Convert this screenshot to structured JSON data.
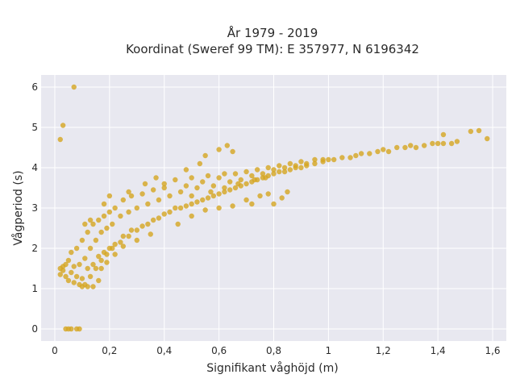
{
  "chart_data": {
    "type": "scatter",
    "title": "År 1979 - 2019",
    "subtitle": "Koordinat (Sweref 99 TM): E 357977, N 6196342",
    "xlabel": "Signifikant våghöjd (m)",
    "ylabel": "Vågperiod (s)",
    "xlim": [
      -0.05,
      1.65
    ],
    "ylim": [
      -0.3,
      6.3
    ],
    "x_ticks": [
      0,
      0.2,
      0.4,
      0.6,
      0.8,
      1,
      1.2,
      1.4,
      1.6
    ],
    "x_tick_labels": [
      "0",
      "0,2",
      "0,4",
      "0,6",
      "0,8",
      "1",
      "1,2",
      "1,4",
      "1,6"
    ],
    "y_ticks": [
      0,
      1,
      2,
      3,
      4,
      5,
      6
    ],
    "y_tick_labels": [
      "0",
      "1",
      "2",
      "3",
      "4",
      "5",
      "6"
    ],
    "grid": true,
    "legend": "none",
    "colors": {
      "point": "#d4a520",
      "plot_bg": "#e8e8f0",
      "grid": "#ffffff"
    },
    "series": [
      {
        "values_note": "",
        "points": [
          [
            0.02,
            1.35
          ],
          [
            0.02,
            1.5
          ],
          [
            0.03,
            1.45
          ],
          [
            0.03,
            1.55
          ],
          [
            0.04,
            1.3
          ],
          [
            0.04,
            1.6
          ],
          [
            0.05,
            1.2
          ],
          [
            0.05,
            1.7
          ],
          [
            0.06,
            1.4
          ],
          [
            0.06,
            1.9
          ],
          [
            0.07,
            1.15
          ],
          [
            0.07,
            1.55
          ],
          [
            0.08,
            1.3
          ],
          [
            0.08,
            2.0
          ],
          [
            0.09,
            1.1
          ],
          [
            0.09,
            1.6
          ],
          [
            0.1,
            1.25
          ],
          [
            0.1,
            2.2
          ],
          [
            0.11,
            1.1
          ],
          [
            0.11,
            1.75
          ],
          [
            0.12,
            1.5
          ],
          [
            0.12,
            2.4
          ],
          [
            0.13,
            1.3
          ],
          [
            0.13,
            2.0
          ],
          [
            0.14,
            1.6
          ],
          [
            0.14,
            2.6
          ],
          [
            0.15,
            1.5
          ],
          [
            0.15,
            2.2
          ],
          [
            0.16,
            1.8
          ],
          [
            0.16,
            2.7
          ],
          [
            0.17,
            1.7
          ],
          [
            0.17,
            2.4
          ],
          [
            0.18,
            1.9
          ],
          [
            0.18,
            2.8
          ],
          [
            0.19,
            1.85
          ],
          [
            0.19,
            2.5
          ],
          [
            0.2,
            2.0
          ],
          [
            0.2,
            2.9
          ],
          [
            0.21,
            2.0
          ],
          [
            0.21,
            2.6
          ],
          [
            0.22,
            2.1
          ],
          [
            0.22,
            3.0
          ],
          [
            0.24,
            2.15
          ],
          [
            0.24,
            2.8
          ],
          [
            0.25,
            2.3
          ],
          [
            0.25,
            3.2
          ],
          [
            0.27,
            2.3
          ],
          [
            0.27,
            2.9
          ],
          [
            0.28,
            2.45
          ],
          [
            0.28,
            3.3
          ],
          [
            0.3,
            2.45
          ],
          [
            0.3,
            3.0
          ],
          [
            0.32,
            2.55
          ],
          [
            0.32,
            3.35
          ],
          [
            0.34,
            2.6
          ],
          [
            0.34,
            3.1
          ],
          [
            0.36,
            2.7
          ],
          [
            0.36,
            3.45
          ],
          [
            0.38,
            2.75
          ],
          [
            0.38,
            3.2
          ],
          [
            0.4,
            2.85
          ],
          [
            0.4,
            3.6
          ],
          [
            0.42,
            2.9
          ],
          [
            0.42,
            3.3
          ],
          [
            0.44,
            3.0
          ],
          [
            0.44,
            3.7
          ],
          [
            0.46,
            3.0
          ],
          [
            0.46,
            3.4
          ],
          [
            0.48,
            3.05
          ],
          [
            0.48,
            3.55
          ],
          [
            0.5,
            3.1
          ],
          [
            0.5,
            3.75
          ],
          [
            0.52,
            3.15
          ],
          [
            0.52,
            3.5
          ],
          [
            0.54,
            3.2
          ],
          [
            0.54,
            3.65
          ],
          [
            0.56,
            3.25
          ],
          [
            0.56,
            3.8
          ],
          [
            0.58,
            3.3
          ],
          [
            0.58,
            3.55
          ],
          [
            0.6,
            3.35
          ],
          [
            0.6,
            3.75
          ],
          [
            0.62,
            3.4
          ],
          [
            0.62,
            3.85
          ],
          [
            0.64,
            3.45
          ],
          [
            0.64,
            3.65
          ],
          [
            0.66,
            3.5
          ],
          [
            0.66,
            3.85
          ],
          [
            0.68,
            3.55
          ],
          [
            0.68,
            3.7
          ],
          [
            0.7,
            3.6
          ],
          [
            0.7,
            3.9
          ],
          [
            0.72,
            3.65
          ],
          [
            0.72,
            3.8
          ],
          [
            0.74,
            3.7
          ],
          [
            0.74,
            3.95
          ],
          [
            0.76,
            3.75
          ],
          [
            0.76,
            3.85
          ],
          [
            0.78,
            3.8
          ],
          [
            0.78,
            4.0
          ],
          [
            0.8,
            3.85
          ],
          [
            0.8,
            3.95
          ],
          [
            0.82,
            3.9
          ],
          [
            0.82,
            4.05
          ],
          [
            0.84,
            3.9
          ],
          [
            0.84,
            4.0
          ],
          [
            0.86,
            3.95
          ],
          [
            0.86,
            4.1
          ],
          [
            0.88,
            4.0
          ],
          [
            0.88,
            4.05
          ],
          [
            0.9,
            4.0
          ],
          [
            0.9,
            4.15
          ],
          [
            0.92,
            4.05
          ],
          [
            0.92,
            4.1
          ],
          [
            0.95,
            4.1
          ],
          [
            0.95,
            4.2
          ],
          [
            0.98,
            4.15
          ],
          [
            0.98,
            4.2
          ],
          [
            1.0,
            4.2
          ],
          [
            1.02,
            4.2
          ],
          [
            1.05,
            4.25
          ],
          [
            1.08,
            4.25
          ],
          [
            1.1,
            4.3
          ],
          [
            1.12,
            4.35
          ],
          [
            1.15,
            4.35
          ],
          [
            1.18,
            4.4
          ],
          [
            1.2,
            4.45
          ],
          [
            1.22,
            4.4
          ],
          [
            1.25,
            4.5
          ],
          [
            1.28,
            4.5
          ],
          [
            1.3,
            4.55
          ],
          [
            1.32,
            4.5
          ],
          [
            1.35,
            4.55
          ],
          [
            1.38,
            4.6
          ],
          [
            1.4,
            4.6
          ],
          [
            1.42,
            4.6
          ],
          [
            1.45,
            4.6
          ],
          [
            1.47,
            4.65
          ],
          [
            1.42,
            4.82
          ],
          [
            1.52,
            4.9
          ],
          [
            1.55,
            4.92
          ],
          [
            1.58,
            4.72
          ],
          [
            0.02,
            4.7
          ],
          [
            0.03,
            5.05
          ],
          [
            0.07,
            6.0
          ],
          [
            0.04,
            0.0
          ],
          [
            0.05,
            0.0
          ],
          [
            0.06,
            0.0
          ],
          [
            0.08,
            0.0
          ],
          [
            0.09,
            0.0
          ],
          [
            0.63,
            4.55
          ],
          [
            0.65,
            4.4
          ],
          [
            0.6,
            4.45
          ],
          [
            0.55,
            4.3
          ],
          [
            0.7,
            3.2
          ],
          [
            0.72,
            3.1
          ],
          [
            0.75,
            3.3
          ],
          [
            0.78,
            3.35
          ],
          [
            0.83,
            3.25
          ],
          [
            0.85,
            3.4
          ],
          [
            0.8,
            3.1
          ],
          [
            0.55,
            2.95
          ],
          [
            0.6,
            3.0
          ],
          [
            0.65,
            3.05
          ],
          [
            0.5,
            2.8
          ],
          [
            0.45,
            2.6
          ],
          [
            0.35,
            2.35
          ],
          [
            0.3,
            2.2
          ],
          [
            0.25,
            2.05
          ],
          [
            0.22,
            1.85
          ],
          [
            0.19,
            1.65
          ],
          [
            0.17,
            1.5
          ],
          [
            0.16,
            1.2
          ],
          [
            0.14,
            1.05
          ],
          [
            0.12,
            1.05
          ],
          [
            0.1,
            1.05
          ],
          [
            0.11,
            2.6
          ],
          [
            0.13,
            2.7
          ],
          [
            0.18,
            3.1
          ],
          [
            0.2,
            3.3
          ],
          [
            0.27,
            3.4
          ],
          [
            0.33,
            3.6
          ],
          [
            0.37,
            3.75
          ],
          [
            0.4,
            3.5
          ],
          [
            0.48,
            3.95
          ],
          [
            0.53,
            4.1
          ],
          [
            0.5,
            3.3
          ],
          [
            0.57,
            3.4
          ],
          [
            0.62,
            3.5
          ],
          [
            0.67,
            3.6
          ],
          [
            0.73,
            3.7
          ],
          [
            0.77,
            3.75
          ]
        ]
      }
    ]
  }
}
